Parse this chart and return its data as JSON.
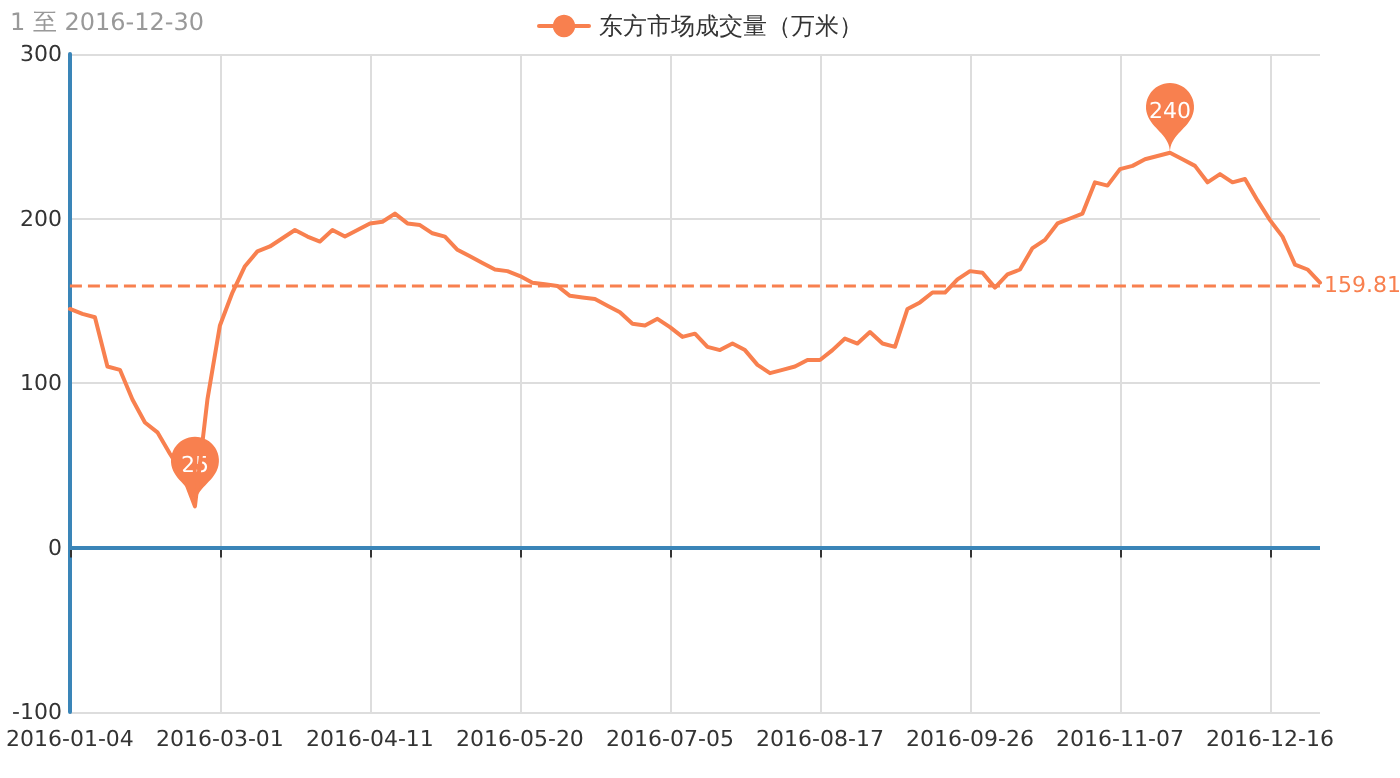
{
  "chart_data": {
    "type": "line",
    "title": "1 至 2016-12-30",
    "categories": [
      "2016-01-04",
      null,
      null,
      null,
      null,
      null,
      null,
      null,
      null,
      null,
      null,
      null,
      "2016-03-01",
      null,
      null,
      null,
      null,
      null,
      null,
      null,
      null,
      null,
      null,
      null,
      "2016-04-11",
      null,
      null,
      null,
      null,
      null,
      null,
      null,
      null,
      null,
      null,
      null,
      "2016-05-20",
      null,
      null,
      null,
      null,
      null,
      null,
      null,
      null,
      null,
      null,
      null,
      "2016-07-05",
      null,
      null,
      null,
      null,
      null,
      null,
      null,
      null,
      null,
      null,
      null,
      "2016-08-17",
      null,
      null,
      null,
      null,
      null,
      null,
      null,
      null,
      null,
      null,
      null,
      "2016-09-26",
      null,
      null,
      null,
      null,
      null,
      null,
      null,
      null,
      null,
      null,
      null,
      "2016-11-07",
      null,
      null,
      null,
      null,
      null,
      null,
      null,
      null,
      null,
      null,
      null,
      "2016-12-16",
      null,
      null,
      null,
      null
    ],
    "series": [
      {
        "name": "东方市场成交量（万米）",
        "color": "#f8804f",
        "values": [
          145,
          142,
          140,
          110,
          108,
          90,
          76,
          70,
          57,
          45,
          25,
          90,
          135,
          155,
          171,
          180,
          183,
          188,
          193,
          189,
          186,
          193,
          189,
          193,
          197,
          198,
          203,
          197,
          196,
          191,
          189,
          181,
          177,
          173,
          169,
          168,
          165,
          161,
          160,
          159,
          153,
          152,
          151,
          147,
          143,
          136,
          135,
          139,
          134,
          128,
          130,
          122,
          120,
          124,
          120,
          111,
          106,
          108,
          110,
          114,
          114,
          120,
          127,
          124,
          131,
          124,
          122,
          145,
          149,
          155,
          155,
          163,
          168,
          167,
          158,
          166,
          169,
          182,
          187,
          197,
          200,
          203,
          222,
          220,
          230,
          232,
          236,
          238,
          240,
          236,
          232,
          222,
          227,
          222,
          224,
          211,
          199,
          189,
          172,
          169,
          161
        ]
      }
    ],
    "annotations": [
      {
        "text": "240",
        "y": 240
      },
      {
        "text": "25",
        "y": 25
      }
    ],
    "ref_lines": [
      {
        "axis": "y",
        "value": 159.81,
        "label": "159.81",
        "color": "#f8804f",
        "line_style": "dashed"
      },
      {
        "axis": "y",
        "value": 0,
        "color": "#3a85b8",
        "line_style": "solid"
      }
    ],
    "ylim": [
      -100,
      300
    ],
    "yticks": [
      -100,
      0,
      100,
      200,
      300
    ],
    "grid": true,
    "legend": "top",
    "marker": "none",
    "line_style": "solid"
  }
}
